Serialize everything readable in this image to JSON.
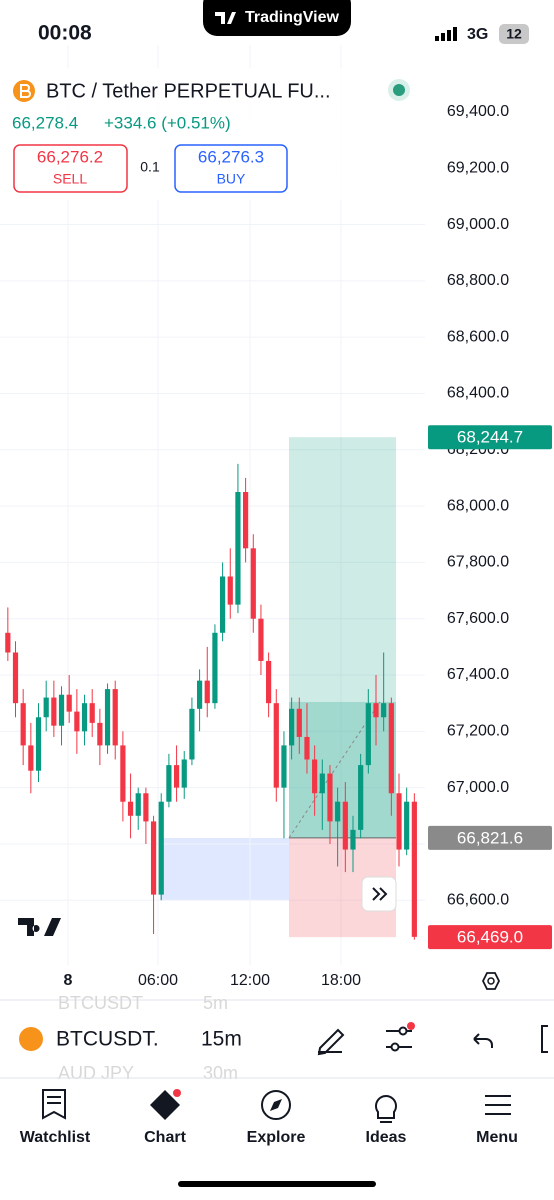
{
  "status_bar": {
    "time": "00:08",
    "app": "TradingView",
    "network": "3G",
    "battery": "12"
  },
  "header": {
    "symbol": "BTC / Tether PERPETUAL FU...",
    "price": "66,278.4",
    "change": "+334.6 (+0.51%)",
    "sell": {
      "price": "66,276.2",
      "label": "SELL"
    },
    "quantity": "0.1",
    "buy": {
      "price": "66,276.3",
      "label": "BUY"
    }
  },
  "chart_data": {
    "type": "candlestick",
    "up_color": "#089981",
    "down_color": "#f23645",
    "open": [
      67550,
      67480,
      67300,
      67150,
      67060,
      67250,
      67320,
      67220,
      67330,
      67270,
      67200,
      67300,
      67230,
      67150,
      67350,
      67150,
      66950,
      66900,
      66980,
      66880,
      66620,
      66950,
      67080,
      67000,
      67100,
      67280,
      67380,
      67300,
      67550,
      67750,
      67650,
      68050,
      67850,
      67600,
      67450,
      67300,
      67000,
      67150,
      67280,
      67180,
      67100,
      66980,
      67050,
      66880,
      66950,
      66780,
      66850,
      67080,
      67300,
      67250,
      67300,
      66980,
      66780,
      66950
    ],
    "high": [
      67640,
      67520,
      67350,
      67230,
      67300,
      67380,
      67380,
      67360,
      67400,
      67350,
      67330,
      67350,
      67280,
      67370,
      67380,
      67200,
      67050,
      67000,
      67000,
      66900,
      66980,
      67120,
      67150,
      67130,
      67320,
      67420,
      67500,
      67580,
      67800,
      67850,
      68150,
      68100,
      67900,
      67650,
      67480,
      67350,
      67200,
      67320,
      67320,
      67300,
      67150,
      67100,
      67080,
      67000,
      67020,
      66900,
      67120,
      67350,
      67400,
      67480,
      67320,
      67050,
      67000,
      66980
    ],
    "low": [
      67450,
      67250,
      67080,
      66980,
      67020,
      67200,
      67180,
      67150,
      67230,
      67120,
      67150,
      67180,
      67080,
      67120,
      67100,
      66880,
      66820,
      66850,
      66800,
      66480,
      66600,
      66930,
      66950,
      66960,
      67080,
      67200,
      67250,
      67280,
      67520,
      67600,
      67620,
      67800,
      67550,
      67400,
      67250,
      66950,
      66820,
      67100,
      67120,
      67050,
      66900,
      66850,
      66800,
      66720,
      66700,
      66700,
      66820,
      67050,
      67150,
      67200,
      66900,
      66720,
      66760,
      66460
    ],
    "close": [
      67480,
      67300,
      67150,
      67060,
      67250,
      67320,
      67220,
      67330,
      67270,
      67200,
      67300,
      67230,
      67150,
      67350,
      67150,
      66950,
      66900,
      66980,
      66880,
      66620,
      66950,
      67080,
      67000,
      67100,
      67280,
      67380,
      67300,
      67550,
      67750,
      67650,
      68050,
      67850,
      67600,
      67450,
      67300,
      67000,
      67150,
      67280,
      67180,
      67100,
      66980,
      67050,
      66880,
      66950,
      66780,
      66850,
      67080,
      67300,
      67250,
      67300,
      66980,
      66780,
      66950,
      66470
    ],
    "xtick_labels": [
      "8",
      "06:00",
      "12:00",
      "18:00"
    ],
    "ylim": [
      66370,
      69620
    ],
    "yticks": [
      {
        "value": 69400,
        "label": "69,400.0"
      },
      {
        "value": 69200,
        "label": "69,200.0"
      },
      {
        "value": 69000,
        "label": "69,000.0"
      },
      {
        "value": 68800,
        "label": "68,800.0"
      },
      {
        "value": 68600,
        "label": "68,600.0"
      },
      {
        "value": 68400,
        "label": "68,400.0"
      },
      {
        "value": 68200,
        "label": "68,200.0"
      },
      {
        "value": 68000,
        "label": "68,000.0"
      },
      {
        "value": 67800,
        "label": "67,800.0"
      },
      {
        "value": 67600,
        "label": "67,600.0"
      },
      {
        "value": 67400,
        "label": "67,400.0"
      },
      {
        "value": 67200,
        "label": "67,200.0"
      },
      {
        "value": 67000,
        "label": "67,000.0"
      },
      {
        "value": 66800,
        "label": "66,800.0"
      },
      {
        "value": 66600,
        "label": "66,600.0"
      }
    ],
    "grid": true,
    "price_tags": [
      {
        "value": 68244.7,
        "label": "68,244.7",
        "color": "#089981"
      },
      {
        "value": 66821.6,
        "label": "66,821.6",
        "color": "#8a8a8a"
      },
      {
        "value": 66469,
        "label": "66,469.0",
        "color": "#f23645"
      }
    ]
  },
  "toolbar": {
    "symbol": "BTCUSDT.",
    "interval": "15m",
    "hidden_rows": [
      {
        "symbol": "BTCUSDT",
        "interval": "5m"
      },
      {
        "symbol": "AUD JPY",
        "interval": "30m"
      }
    ]
  },
  "nav": [
    "Watchlist",
    "Chart",
    "Explore",
    "Ideas",
    "Menu"
  ]
}
